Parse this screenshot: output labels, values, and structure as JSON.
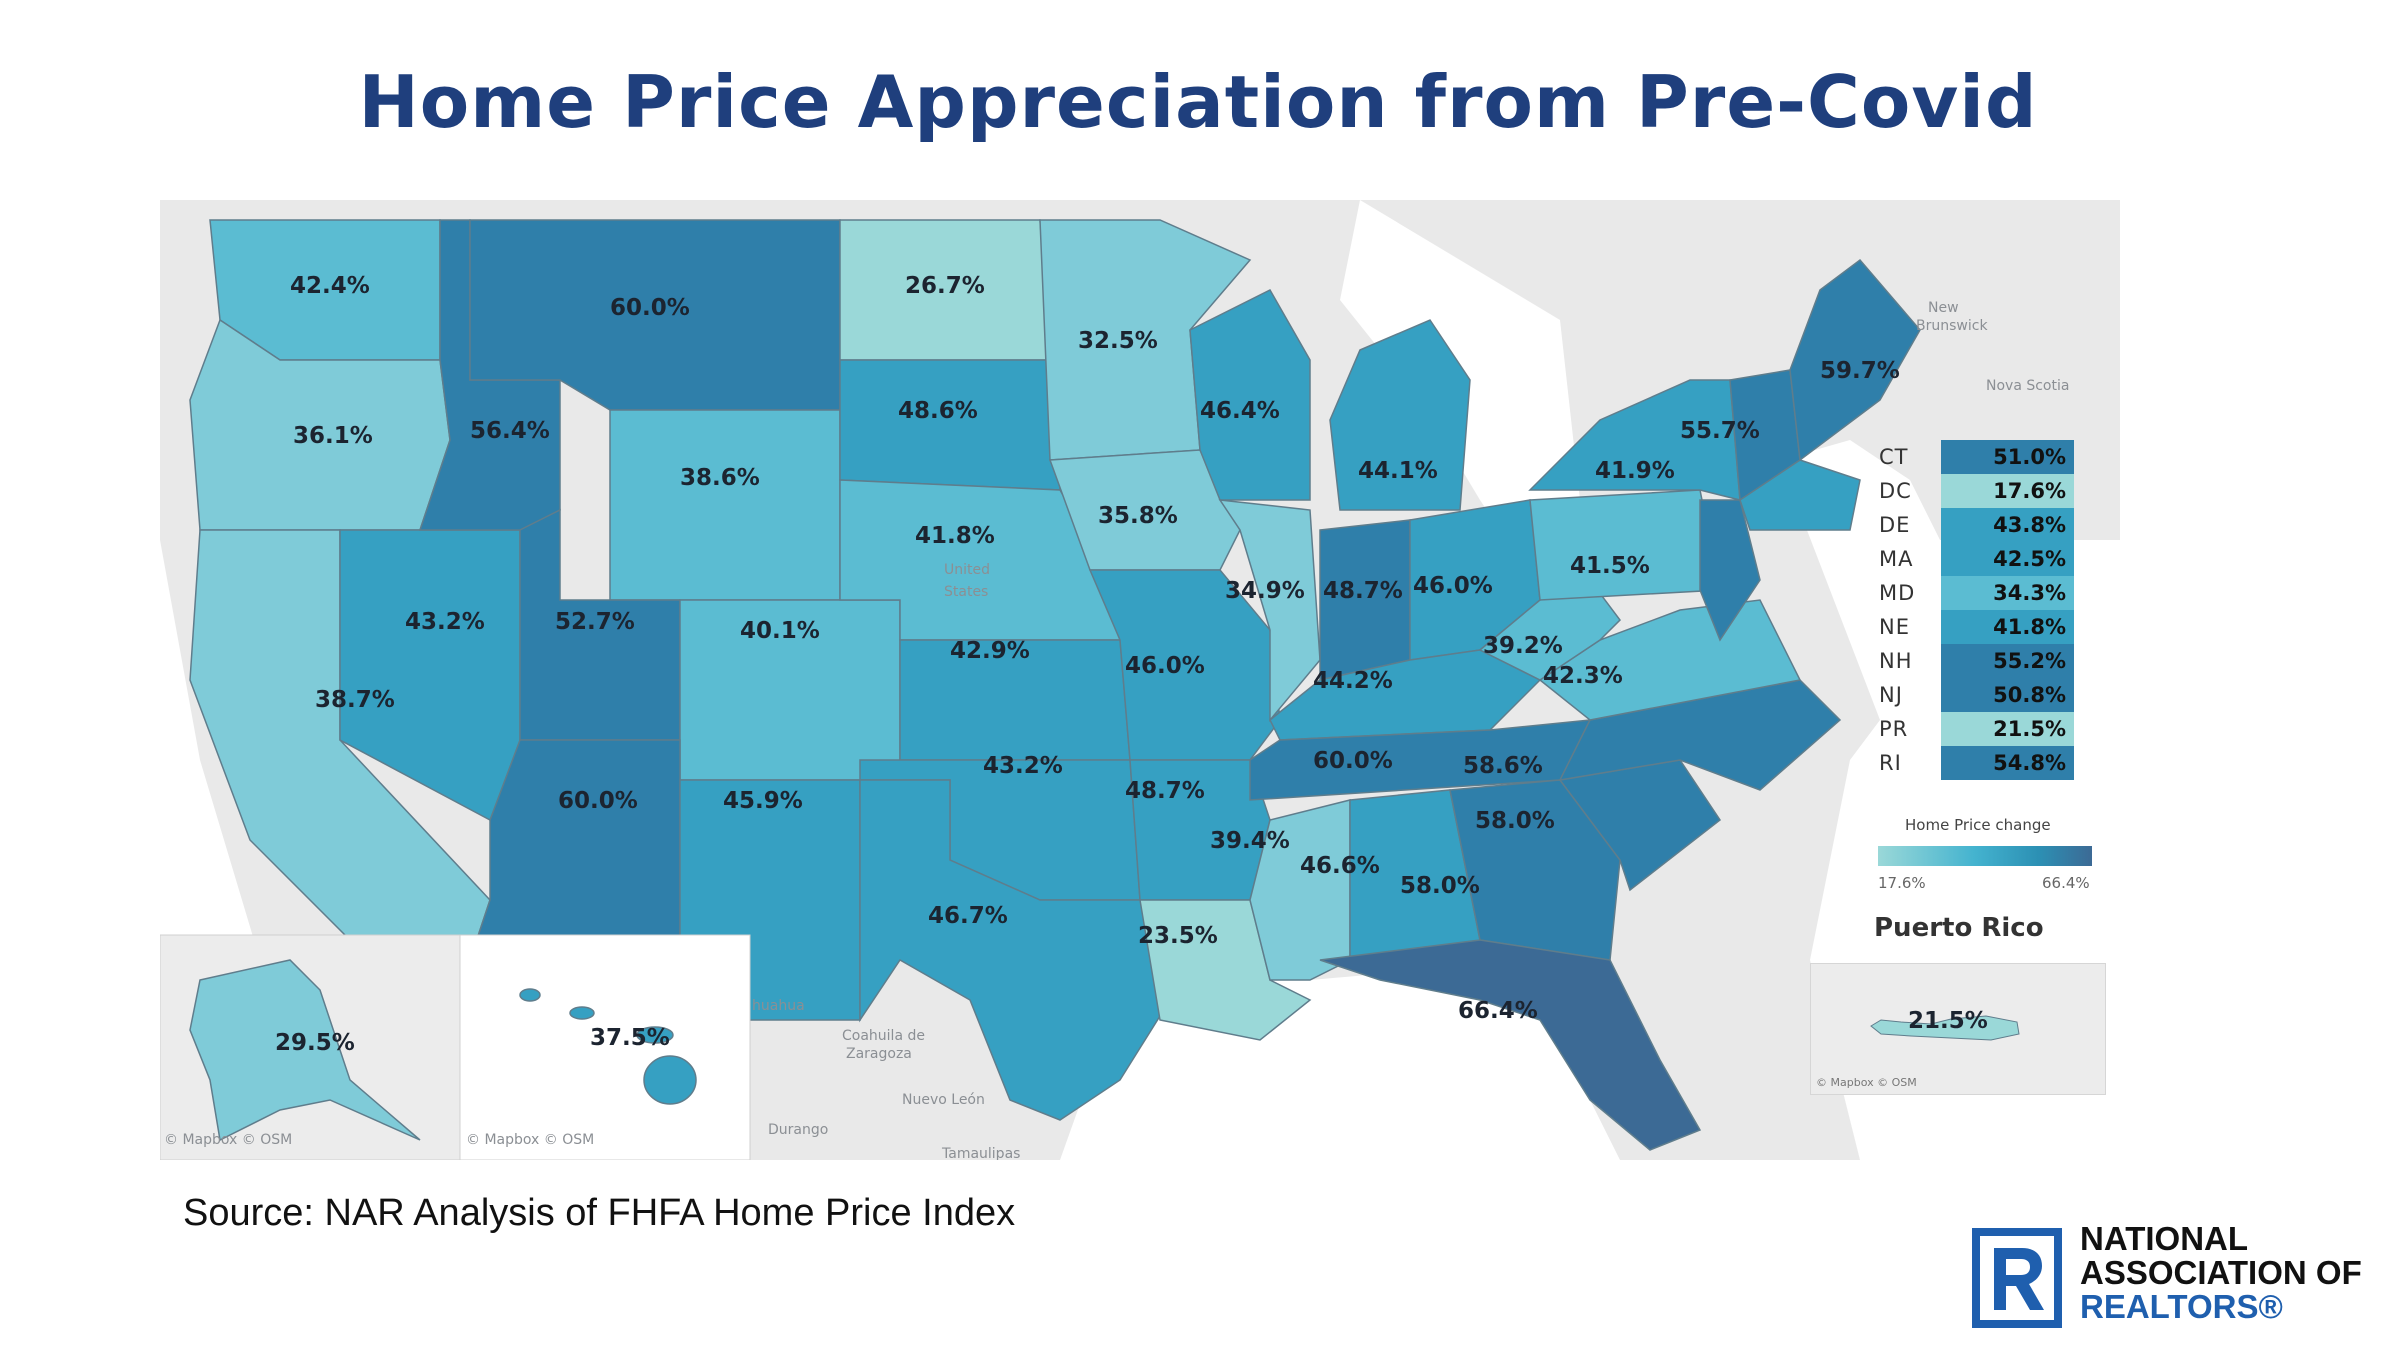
{
  "title": "Home Price Appreciation from Pre-Covid",
  "source": "Source: NAR Analysis of FHFA Home Price Index",
  "logo": {
    "line1": "NATIONAL",
    "line2": "ASSOCIATION OF",
    "line3": "REALTORS®"
  },
  "map": {
    "states": [
      {
        "id": "WA",
        "value": "42.4%"
      },
      {
        "id": "OR",
        "value": "36.1%"
      },
      {
        "id": "CA",
        "value": "38.7%"
      },
      {
        "id": "NV",
        "value": "43.2%"
      },
      {
        "id": "ID",
        "value": "56.4%"
      },
      {
        "id": "MT",
        "value": "60.0%"
      },
      {
        "id": "WY",
        "value": "38.6%"
      },
      {
        "id": "UT",
        "value": "52.7%"
      },
      {
        "id": "CO",
        "value": "40.1%"
      },
      {
        "id": "AZ",
        "value": "60.0%"
      },
      {
        "id": "NM",
        "value": "45.9%"
      },
      {
        "id": "ND",
        "value": "26.7%"
      },
      {
        "id": "SD",
        "value": "48.6%"
      },
      {
        "id": "NE",
        "value": "41.8%"
      },
      {
        "id": "KS",
        "value": "42.9%"
      },
      {
        "id": "OK",
        "value": "43.2%"
      },
      {
        "id": "TX",
        "value": "46.7%"
      },
      {
        "id": "MN",
        "value": "32.5%"
      },
      {
        "id": "IA",
        "value": "35.8%"
      },
      {
        "id": "MO",
        "value": "46.0%"
      },
      {
        "id": "AR",
        "value": "48.7%"
      },
      {
        "id": "LA",
        "value": "23.5%"
      },
      {
        "id": "WI",
        "value": "46.4%"
      },
      {
        "id": "IL",
        "value": "34.9%"
      },
      {
        "id": "MI",
        "value": "44.1%"
      },
      {
        "id": "IN",
        "value": "48.7%"
      },
      {
        "id": "OH",
        "value": "46.0%"
      },
      {
        "id": "KY",
        "value": "44.2%"
      },
      {
        "id": "TN",
        "value": "60.0%"
      },
      {
        "id": "MS",
        "value": "39.4%"
      },
      {
        "id": "AL",
        "value": "46.6%"
      },
      {
        "id": "GA",
        "value": "58.0%"
      },
      {
        "id": "FL",
        "value": "66.4%"
      },
      {
        "id": "SC",
        "value": "58.0%"
      },
      {
        "id": "NC",
        "value": "58.6%"
      },
      {
        "id": "VA",
        "value": "42.3%"
      },
      {
        "id": "WV",
        "value": "39.2%"
      },
      {
        "id": "PA",
        "value": "41.5%"
      },
      {
        "id": "NY",
        "value": "41.9%"
      },
      {
        "id": "VT",
        "value": "55.7%"
      },
      {
        "id": "ME",
        "value": "59.7%"
      },
      {
        "id": "AK",
        "value": "29.5%"
      },
      {
        "id": "HI",
        "value": "37.5%"
      }
    ],
    "colors": {
      "darkest": "#3c6a95",
      "dark": "#2f7faa",
      "mid": "#36a0c2",
      "light": "#5bbcd2",
      "lighter": "#7fcbd8",
      "lightest": "#9ad8d8",
      "land": "#e9e9e9",
      "water": "#ffffff"
    },
    "geo_labels": {
      "new_brunswick_1": "New",
      "new_brunswick_2": "Brunswick",
      "nova_scotia": "Nova Scotia",
      "united_1": "United",
      "united_2": "States",
      "chihuahua": "huahua",
      "coahuila_1": "Coahuila de",
      "coahuila_2": "Zaragoza",
      "nuevo_leon": "Nuevo León",
      "durango": "Durango",
      "tamaulipas": "Tamaulipas"
    },
    "inset_credits": {
      "alaska": "© Mapbox © OSM",
      "hawaii": "© Mapbox © OSM"
    }
  },
  "legend_table": [
    {
      "abbr": "CT",
      "value": "51.0%",
      "color": "#2f7faa"
    },
    {
      "abbr": "DC",
      "value": "17.6%",
      "color": "#9ad8d8"
    },
    {
      "abbr": "DE",
      "value": "43.8%",
      "color": "#36a0c2"
    },
    {
      "abbr": "MA",
      "value": "42.5%",
      "color": "#36a0c2"
    },
    {
      "abbr": "MD",
      "value": "34.3%",
      "color": "#5bbcd2"
    },
    {
      "abbr": "NE",
      "value": "41.8%",
      "color": "#36a0c2"
    },
    {
      "abbr": "NH",
      "value": "55.2%",
      "color": "#2f7faa"
    },
    {
      "abbr": "NJ",
      "value": "50.8%",
      "color": "#2f7faa"
    },
    {
      "abbr": "PR",
      "value": "21.5%",
      "color": "#9ad8d8"
    },
    {
      "abbr": "RI",
      "value": "54.8%",
      "color": "#2f7faa"
    }
  ],
  "scale": {
    "title": "Home Price change",
    "min": "17.6%",
    "max": "66.4%"
  },
  "puerto_rico": {
    "title": "Puerto Rico",
    "value": "21.5%",
    "credit": "© Mapbox © OSM"
  }
}
